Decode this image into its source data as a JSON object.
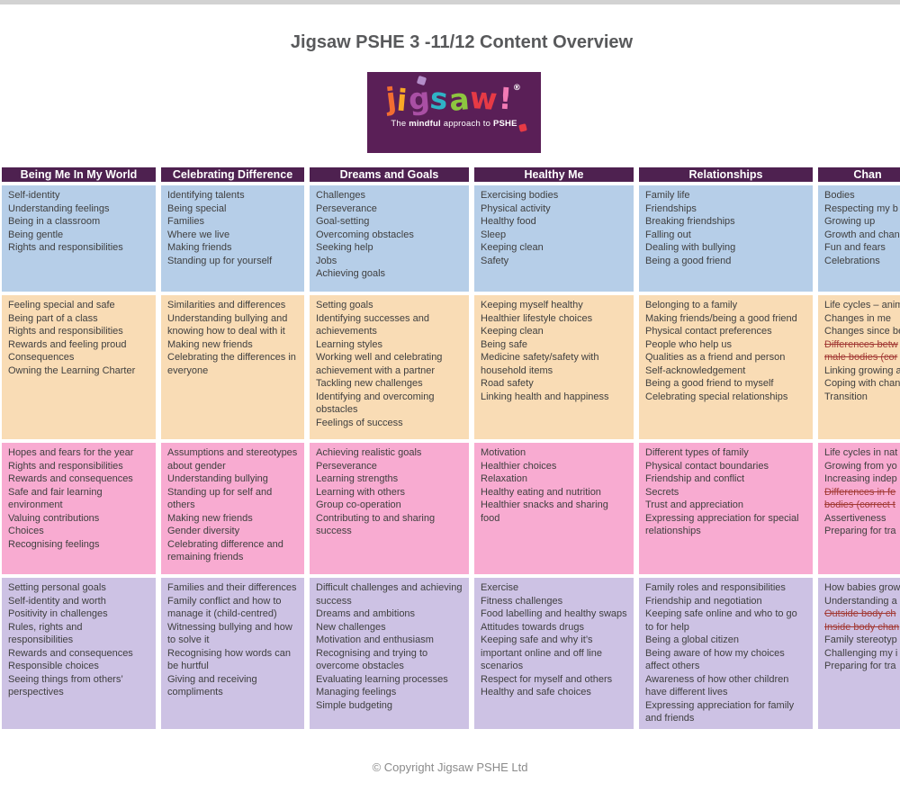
{
  "page": {
    "title": "Jigsaw PSHE 3 -11/12 Content Overview",
    "footer": "© Copyright Jigsaw PSHE Ltd"
  },
  "logo": {
    "letters": [
      {
        "ch": "j",
        "color": "#f26d31"
      },
      {
        "ch": "i",
        "color": "#f9a826"
      },
      {
        "ch": "g",
        "color": "#a94fa4"
      },
      {
        "ch": "s",
        "color": "#2fb3c6"
      },
      {
        "ch": "a",
        "color": "#8dc63f"
      },
      {
        "ch": "w",
        "color": "#e63a45"
      }
    ],
    "exclamation": "!",
    "exclamation_color": "#f27ab5",
    "registered": "®",
    "tagline_prefix": "The ",
    "tagline_bold": "mindful",
    "tagline_mid": " approach to ",
    "tagline_bold2": "PSHE"
  },
  "colors": {
    "topbar": "#d2d2d2",
    "title_color": "#58595b",
    "logo_bg": "#5a1f57",
    "header_bg": "#4e2150",
    "row1_bg": "#b6cee8",
    "row2_bg": "#f9dcb5",
    "row3_bg": "#f8abd1",
    "row4_bg": "#cdc2e4",
    "cell_text": "#3f3f3f",
    "strike_color": "#a23a35",
    "footer_color": "#8b8b8b"
  },
  "table": {
    "columns": [
      {
        "key": "being-me-in-my-world",
        "label": "Being Me In My World"
      },
      {
        "key": "celebrating-difference",
        "label": "Celebrating Difference"
      },
      {
        "key": "dreams-and-goals",
        "label": "Dreams and Goals"
      },
      {
        "key": "healthy-me",
        "label": "Healthy Me"
      },
      {
        "key": "relationships",
        "label": "Relationships"
      },
      {
        "key": "changing-me",
        "label": "Chan"
      }
    ],
    "rows": [
      {
        "cells": [
          [
            "Self-identity",
            "Understanding feelings",
            "Being in a classroom",
            "Being gentle",
            "Rights and responsibilities"
          ],
          [
            "Identifying talents",
            "Being special",
            "Families",
            "Where we live",
            "Making friends",
            "Standing up for yourself"
          ],
          [
            "Challenges",
            "Perseverance",
            "Goal-setting",
            "Overcoming obstacles",
            "Seeking help",
            "Jobs",
            "Achieving goals"
          ],
          [
            "Exercising bodies",
            "Physical activity",
            "Healthy food",
            "Sleep",
            "Keeping clean",
            "Safety"
          ],
          [
            "Family life",
            "Friendships",
            "Breaking friendships",
            "Falling out",
            "Dealing with bullying",
            "Being a good friend"
          ],
          [
            "Bodies",
            "Respecting my b",
            "Growing up",
            "Growth and chan",
            "Fun and fears",
            "Celebrations"
          ]
        ]
      },
      {
        "cells": [
          [
            "Feeling special and safe",
            "Being part of a class",
            "Rights and responsibilities",
            "Rewards and feeling proud",
            "Consequences",
            "Owning the Learning Charter"
          ],
          [
            "Similarities and differences",
            "Understanding bullying and knowing how to deal with it",
            "Making new friends",
            "Celebrating the differences in everyone"
          ],
          [
            "Setting goals",
            "Identifying successes and achievements",
            "Learning styles",
            "Working well and celebrating achievement with a partner",
            "Tackling new challenges",
            "Identifying and overcoming obstacles",
            "Feelings of success"
          ],
          [
            "Keeping myself healthy",
            "Healthier lifestyle choices",
            "Keeping clean",
            "Being safe",
            "Medicine safety/safety with household items",
            "Road safety",
            "Linking health and happiness"
          ],
          [
            "Belonging to a family",
            "Making friends/being a good friend",
            "Physical contact preferences",
            "People who help us",
            "Qualities as a friend and person",
            "Self-acknowledgement",
            "Being a good friend to myself",
            "Celebrating special relationships"
          ],
          [
            "Life cycles – anim",
            "Changes in me",
            "Changes since be",
            {
              "text": "Differences betw",
              "strike": true
            },
            {
              "text": "male bodies (cor",
              "strike": true
            },
            "Linking growing a",
            "Coping with chan",
            "Transition"
          ]
        ]
      },
      {
        "cells": [
          [
            "Hopes and fears for the year",
            "Rights and responsibilities",
            "Rewards and consequences",
            "Safe and fair learning environment",
            "Valuing contributions",
            "Choices",
            "Recognising feelings"
          ],
          [
            "Assumptions and stereotypes about gender",
            "Understanding bullying",
            "Standing up for self and others",
            "Making new friends",
            "Gender diversity",
            "Celebrating difference and remaining friends"
          ],
          [
            "Achieving realistic goals",
            "Perseverance",
            "Learning strengths",
            "Learning with others",
            "Group co-operation",
            "Contributing to and sharing success"
          ],
          [
            "Motivation",
            "Healthier choices",
            "Relaxation",
            "Healthy eating and nutrition",
            "Healthier snacks and sharing food"
          ],
          [
            "Different types of family",
            "Physical contact boundaries",
            "Friendship and conflict",
            "Secrets",
            "Trust and appreciation",
            "Expressing appreciation for special relationships"
          ],
          [
            "Life cycles in nat",
            "Growing from yo",
            "Increasing indep",
            {
              "text": "Differences in fe",
              "strike": true
            },
            {
              "text": "bodies (correct t",
              "strike": true
            },
            "Assertiveness",
            "Preparing for tra"
          ]
        ]
      },
      {
        "cells": [
          [
            "Setting personal goals",
            "Self-identity and worth",
            "Positivity in challenges",
            "Rules, rights and responsibilities",
            "Rewards and consequences",
            "Responsible choices",
            "Seeing things from others’ perspectives"
          ],
          [
            "Families and their differences",
            "Family conflict and how to manage it (child-centred)",
            "Witnessing bullying and how to solve it",
            "Recognising how words can be hurtful",
            "Giving and receiving compliments"
          ],
          [
            "Difficult challenges and achieving success",
            "Dreams and ambitions",
            "New challenges",
            "Motivation and enthusiasm",
            "Recognising and trying to overcome obstacles",
            "Evaluating learning processes",
            "Managing feelings",
            "Simple budgeting"
          ],
          [
            "Exercise",
            "Fitness challenges",
            "Food labelling and healthy swaps",
            "Attitudes towards drugs",
            "Keeping safe and why it’s important online and off line scenarios",
            "Respect for myself and others",
            "Healthy and safe choices"
          ],
          [
            "Family roles and responsibilities",
            "Friendship and negotiation",
            "Keeping safe online and who to go to for help",
            "Being a global citizen",
            "Being aware of how my choices affect others",
            "Awareness of how other children have different lives",
            "Expressing appreciation for family and friends"
          ],
          [
            "How babies grow",
            "Understanding a",
            {
              "text": "Outside body ch",
              "strike": true
            },
            {
              "text": "Inside body chan",
              "strike": true
            },
            "Family stereotyp",
            "Challenging my i",
            "Preparing for tra"
          ]
        ]
      }
    ]
  }
}
